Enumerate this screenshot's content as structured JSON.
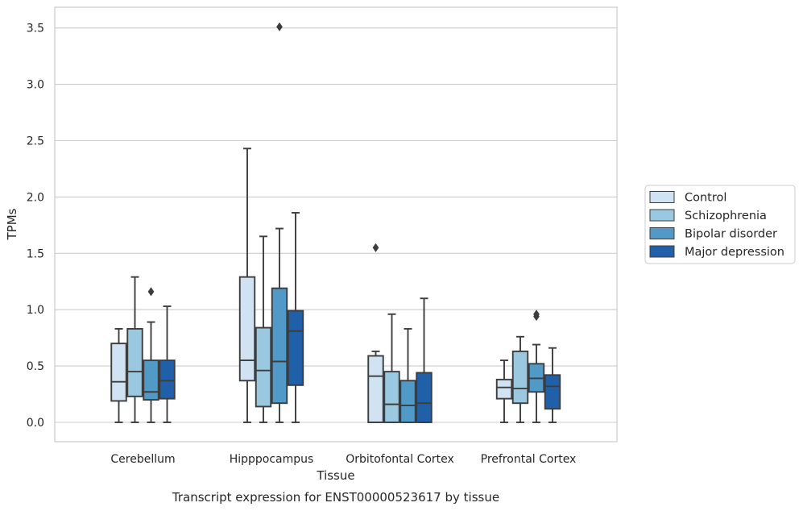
{
  "caption": "Transcript expression for ENST00000523617 by tissue",
  "chart_data": {
    "type": "boxplot",
    "xlabel": "Tissue",
    "ylabel": "TPMs",
    "ylim": [
      -0.17,
      3.68
    ],
    "yticks": [
      0.0,
      0.5,
      1.0,
      1.5,
      2.0,
      2.5,
      3.0,
      3.5
    ],
    "ytick_labels": [
      "0.0",
      "0.5",
      "1.0",
      "1.5",
      "2.0",
      "2.5",
      "3.0",
      "3.5"
    ],
    "grid": "horizontal",
    "legend_position": "outside right",
    "categories": [
      "Cerebellum",
      "Hipppocampus",
      "Orbitofontal Cortex",
      "Prefrontal Cortex"
    ],
    "series": [
      {
        "name": "Control",
        "color": "#d1e2f2",
        "boxes": [
          {
            "whislo": 0.0,
            "q1": 0.19,
            "med": 0.36,
            "q3": 0.7,
            "whishi": 0.83,
            "fliers": []
          },
          {
            "whislo": 0.0,
            "q1": 0.37,
            "med": 0.55,
            "q3": 1.29,
            "whishi": 2.43,
            "fliers": []
          },
          {
            "whislo": 0.0,
            "q1": 0.0,
            "med": 0.41,
            "q3": 0.59,
            "whishi": 0.63,
            "fliers": [
              1.55
            ]
          },
          {
            "whislo": 0.0,
            "q1": 0.21,
            "med": 0.31,
            "q3": 0.38,
            "whishi": 0.55,
            "fliers": []
          }
        ]
      },
      {
        "name": "Schizophrenia",
        "color": "#9ac8e0",
        "boxes": [
          {
            "whislo": 0.0,
            "q1": 0.23,
            "med": 0.45,
            "q3": 0.83,
            "whishi": 1.29,
            "fliers": []
          },
          {
            "whislo": 0.0,
            "q1": 0.14,
            "med": 0.46,
            "q3": 0.84,
            "whishi": 1.65,
            "fliers": []
          },
          {
            "whislo": 0.0,
            "q1": 0.0,
            "med": 0.16,
            "q3": 0.45,
            "whishi": 0.96,
            "fliers": []
          },
          {
            "whislo": 0.0,
            "q1": 0.17,
            "med": 0.3,
            "q3": 0.63,
            "whishi": 0.76,
            "fliers": []
          }
        ]
      },
      {
        "name": "Bipolar disorder",
        "color": "#5199c7",
        "boxes": [
          {
            "whislo": 0.0,
            "q1": 0.2,
            "med": 0.27,
            "q3": 0.55,
            "whishi": 0.89,
            "fliers": [
              1.16
            ]
          },
          {
            "whislo": 0.0,
            "q1": 0.17,
            "med": 0.54,
            "q3": 1.19,
            "whishi": 1.72,
            "fliers": [
              3.51
            ]
          },
          {
            "whislo": 0.0,
            "q1": 0.0,
            "med": 0.15,
            "q3": 0.37,
            "whishi": 0.83,
            "fliers": []
          },
          {
            "whislo": 0.0,
            "q1": 0.27,
            "med": 0.39,
            "q3": 0.52,
            "whishi": 0.69,
            "fliers": [
              0.94,
              0.96
            ]
          }
        ]
      },
      {
        "name": "Major depression",
        "color": "#2060a8",
        "boxes": [
          {
            "whislo": 0.0,
            "q1": 0.21,
            "med": 0.37,
            "q3": 0.55,
            "whishi": 1.03,
            "fliers": []
          },
          {
            "whislo": 0.0,
            "q1": 0.33,
            "med": 0.81,
            "q3": 0.99,
            "whishi": 1.86,
            "fliers": []
          },
          {
            "whislo": 0.0,
            "q1": 0.0,
            "med": 0.17,
            "q3": 0.44,
            "whishi": 1.1,
            "fliers": []
          },
          {
            "whislo": 0.0,
            "q1": 0.12,
            "med": 0.32,
            "q3": 0.42,
            "whishi": 0.66,
            "fliers": []
          }
        ]
      }
    ]
  }
}
